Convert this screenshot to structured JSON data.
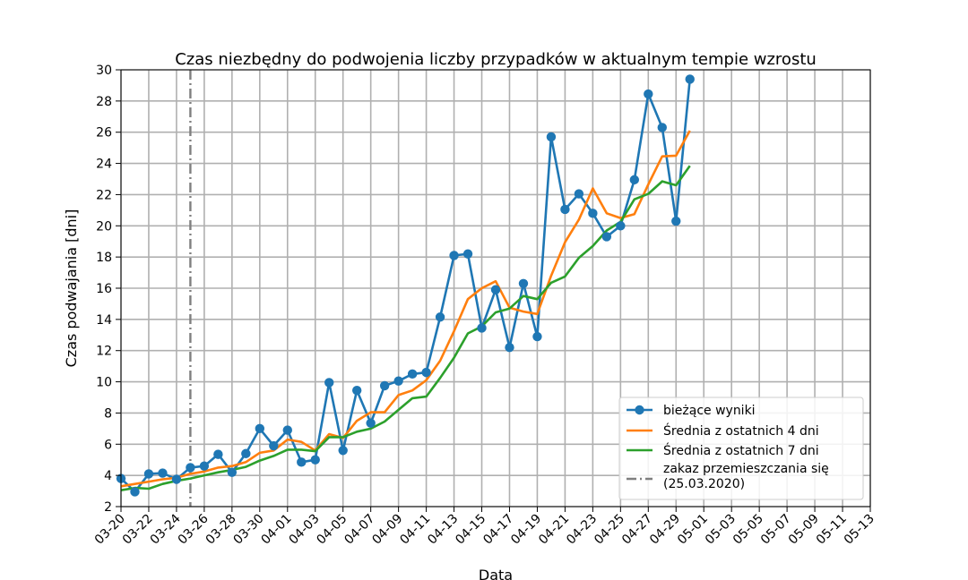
{
  "chart_data": {
    "type": "line",
    "title": "Czas niezbędny do podwojenia liczby przypadków w aktualnym tempie wzrostu",
    "xlabel": "Data",
    "ylabel": "Czas podwajania [dni]",
    "ylim": [
      2,
      30
    ],
    "yticks": [
      2,
      4,
      6,
      8,
      10,
      12,
      14,
      16,
      18,
      20,
      22,
      24,
      26,
      28,
      30
    ],
    "xlim": [
      "03-20",
      "05-13"
    ],
    "xticks": [
      "03-20",
      "03-22",
      "03-24",
      "03-26",
      "03-28",
      "03-30",
      "04-01",
      "04-03",
      "04-05",
      "04-07",
      "04-09",
      "04-11",
      "04-13",
      "04-15",
      "04-17",
      "04-19",
      "04-21",
      "04-23",
      "04-25",
      "04-27",
      "04-29",
      "05-01",
      "05-03",
      "05-05",
      "05-07",
      "05-09",
      "05-11",
      "05-13"
    ],
    "grid": true,
    "legend_position": "bottom-right",
    "vline": {
      "date": "03-25",
      "label": "zakaz przemieszczania się\n(25.03.2020)",
      "color": "#7f7f7f"
    },
    "series": [
      {
        "name": "bieżące wyniki",
        "color": "#1f77b4",
        "markers": true,
        "start_date": "03-20",
        "values": [
          3.8,
          2.95,
          4.1,
          4.15,
          3.75,
          4.5,
          4.6,
          5.35,
          4.2,
          5.4,
          7.0,
          5.9,
          6.9,
          4.85,
          5.0,
          9.95,
          5.6,
          9.45,
          7.35,
          9.75,
          10.05,
          10.5,
          10.6,
          14.15,
          18.1,
          18.2,
          13.45,
          15.9,
          12.2,
          16.3,
          12.9,
          25.7,
          21.05,
          22.05,
          20.8,
          19.3,
          20.0,
          22.95,
          28.45,
          26.3,
          20.3,
          29.4
        ]
      },
      {
        "name": "Średnia z ostatnich 4 dni",
        "color": "#ff7f0e",
        "markers": false,
        "start_date": "03-20",
        "values": [
          3.3,
          3.45,
          3.6,
          3.75,
          3.85,
          4.1,
          4.25,
          4.5,
          4.6,
          4.85,
          5.45,
          5.6,
          6.3,
          6.15,
          5.6,
          6.65,
          6.4,
          7.5,
          8.05,
          8.05,
          9.15,
          9.45,
          10.1,
          11.35,
          13.25,
          15.3,
          16.0,
          16.45,
          14.75,
          14.5,
          14.35,
          16.8,
          18.95,
          20.4,
          22.4,
          20.8,
          20.5,
          20.75,
          22.65,
          24.45,
          24.5,
          26.1
        ]
      },
      {
        "name": "Średnia z ostatnich 7 dni",
        "color": "#2ca02c",
        "markers": false,
        "start_date": "03-20",
        "values": [
          3.05,
          3.2,
          3.15,
          3.45,
          3.65,
          3.8,
          4.0,
          4.2,
          4.35,
          4.55,
          4.95,
          5.25,
          5.65,
          5.65,
          5.55,
          6.45,
          6.45,
          6.8,
          7.0,
          7.45,
          8.2,
          8.95,
          9.05,
          10.25,
          11.55,
          13.1,
          13.55,
          14.45,
          14.7,
          15.5,
          15.3,
          16.35,
          16.75,
          17.95,
          18.7,
          19.7,
          20.25,
          21.7,
          22.05,
          22.85,
          22.6,
          23.85
        ]
      }
    ]
  }
}
